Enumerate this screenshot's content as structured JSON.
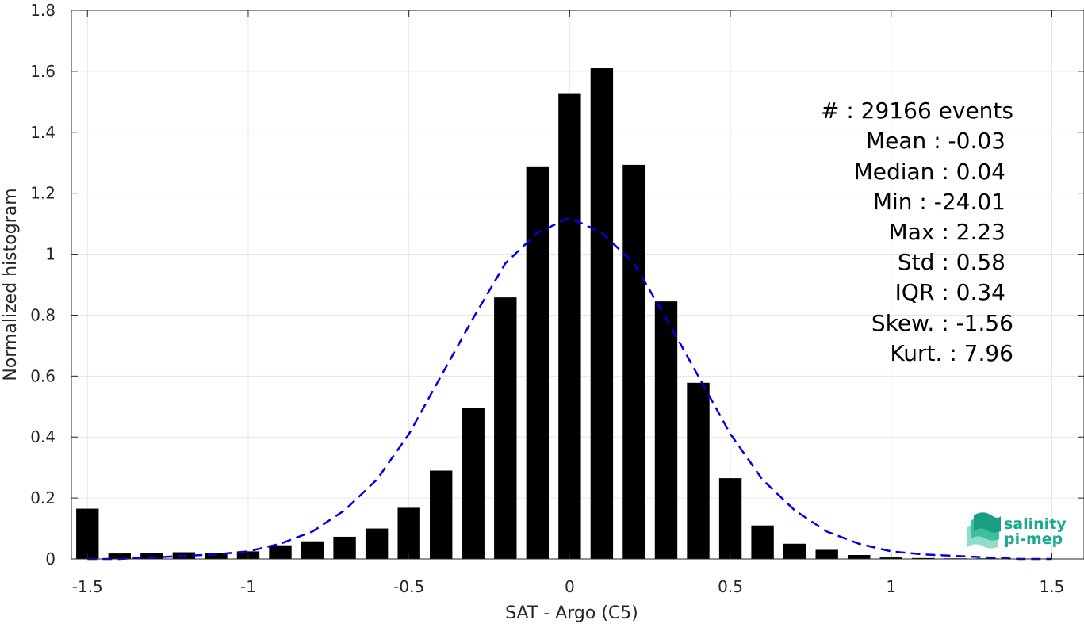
{
  "chart_data": {
    "type": "bar",
    "xlabel": "SAT - Argo (C5)",
    "ylabel": "Normalized histogram",
    "xlim": [
      -1.55,
      1.6
    ],
    "ylim": [
      0,
      1.8
    ],
    "xticks": [
      -1.5,
      -1,
      -0.5,
      0,
      0.5,
      1,
      1.5
    ],
    "xtick_labels": [
      "-1.5",
      "-1",
      "-0.5",
      "0",
      "0.5",
      "1",
      "1.5"
    ],
    "yticks": [
      0,
      0.2,
      0.4,
      0.6,
      0.8,
      1,
      1.2,
      1.4,
      1.6,
      1.8
    ],
    "ytick_labels": [
      "0",
      "0.2",
      "0.4",
      "0.6",
      "0.8",
      "1",
      "1.2",
      "1.4",
      "1.6",
      "1.8"
    ],
    "grid": true,
    "bar_color": "#000000",
    "x": [
      -1.5,
      -1.4,
      -1.3,
      -1.2,
      -1.1,
      -1.0,
      -0.9,
      -0.8,
      -0.7,
      -0.6,
      -0.5,
      -0.4,
      -0.3,
      -0.2,
      -0.1,
      0.0,
      0.1,
      0.2,
      0.3,
      0.4,
      0.5,
      0.6,
      0.7,
      0.8,
      0.9,
      1.0,
      1.1,
      1.2,
      1.3,
      1.4,
      1.5
    ],
    "values": [
      0.165,
      0.018,
      0.02,
      0.022,
      0.02,
      0.025,
      0.045,
      0.058,
      0.073,
      0.1,
      0.168,
      0.29,
      0.495,
      0.858,
      1.288,
      1.528,
      1.61,
      1.293,
      0.845,
      0.578,
      0.265,
      0.11,
      0.05,
      0.03,
      0.013,
      0.005,
      0.003,
      0.002,
      0.002,
      0.001,
      0.001
    ],
    "fit_curve": {
      "style": "dashed",
      "color": "#0000e6",
      "x": [
        -1.5,
        -1.4,
        -1.3,
        -1.2,
        -1.1,
        -1.0,
        -0.9,
        -0.8,
        -0.7,
        -0.6,
        -0.5,
        -0.4,
        -0.3,
        -0.2,
        -0.1,
        0.0,
        0.1,
        0.2,
        0.3,
        0.4,
        0.5,
        0.6,
        0.7,
        0.8,
        0.9,
        1.0,
        1.1,
        1.2,
        1.3,
        1.4,
        1.5
      ],
      "y": [
        0.0,
        0.0,
        0.005,
        0.01,
        0.015,
        0.025,
        0.05,
        0.09,
        0.16,
        0.26,
        0.41,
        0.6,
        0.79,
        0.97,
        1.07,
        1.12,
        1.07,
        0.97,
        0.79,
        0.6,
        0.41,
        0.26,
        0.16,
        0.09,
        0.05,
        0.025,
        0.015,
        0.01,
        0.005,
        0.0,
        0.0
      ]
    },
    "annotations": [
      "#  : 29166 events",
      "Mean : -0.03",
      "Median : 0.04",
      "Min : -24.01",
      "Max : 2.23",
      "Std : 0.58",
      "IQR : 0.34",
      "Skew. : -1.56",
      "Kurt. : 7.96"
    ]
  },
  "logo": {
    "line1": "salinity",
    "line2": "pi-mep",
    "color": "#1aa98f"
  }
}
